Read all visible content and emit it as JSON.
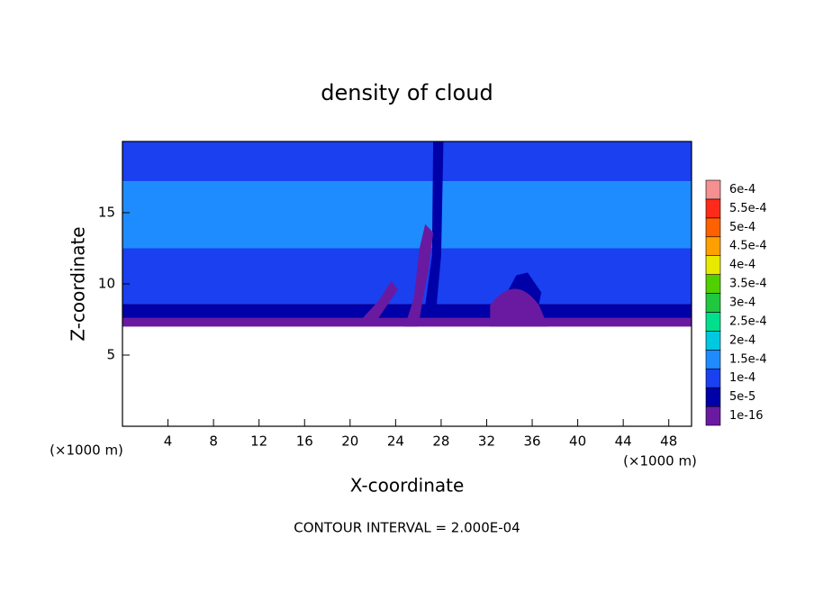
{
  "chart_data": {
    "type": "contour",
    "title": "density of cloud",
    "xlabel": "X-coordinate",
    "ylabel": "Z-coordinate",
    "x_unit": "(×1000 m)",
    "y_unit": "(×1000 m)",
    "xlim": [
      0,
      50
    ],
    "xticks": [
      4,
      8,
      12,
      16,
      20,
      24,
      28,
      32,
      36,
      40,
      44,
      48
    ],
    "ylim": [
      0,
      20
    ],
    "yticks": [
      5,
      10,
      15
    ],
    "footer": "CONTOUR INTERVAL = 2.000E-04",
    "colorbar": {
      "levels": [
        1e-16,
        {
          "value": 5e-05,
          "label": "5e-5"
        },
        {
          "value": 0.0001,
          "label": "1e-4"
        },
        {
          "value": 0.00015,
          "label": "1.5e-4"
        },
        {
          "value": 0.0002,
          "label": "2e-4"
        },
        {
          "value": 0.00025,
          "label": "2.5e-4"
        },
        {
          "value": 0.0003,
          "label": "3e-4"
        },
        {
          "value": 0.00035,
          "label": "3.5e-4"
        },
        {
          "value": 0.0004,
          "label": "4e-4"
        },
        {
          "value": 0.00045,
          "label": "4.5e-4"
        },
        {
          "value": 0.0005,
          "label": "5e-4"
        },
        {
          "value": 0.00055,
          "label": "5.5e-4"
        },
        {
          "value": 0.0006,
          "label": "6e-4"
        }
      ],
      "colors": [
        "#6a1aa0",
        "#0000a8",
        "#1a40f0",
        "#1e8cff",
        "#00c8e0",
        "#00e08c",
        "#20c840",
        "#50d000",
        "#e8e800",
        "#ffa000",
        "#ff6000",
        "#ff2a1a",
        "#f49090"
      ]
    }
  }
}
